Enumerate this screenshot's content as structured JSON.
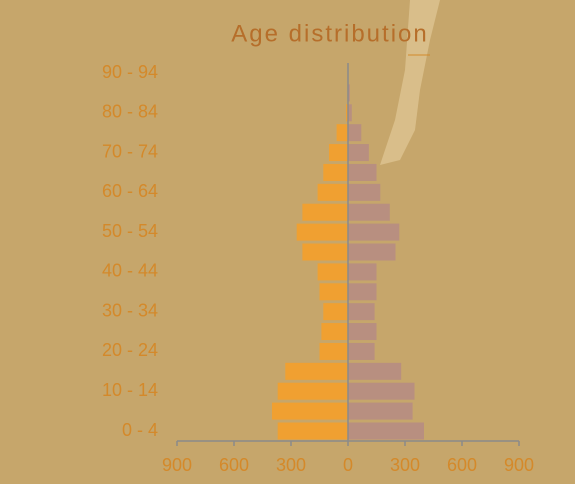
{
  "chart_data": {
    "type": "pyramid",
    "title": "Age distribution",
    "categories": [
      "0 - 4",
      null,
      "10 - 14",
      null,
      "20 - 24",
      null,
      "30 - 34",
      null,
      "40 - 44",
      null,
      "50 - 54",
      null,
      "60 - 64",
      null,
      "70 - 74",
      null,
      "80 - 84",
      null,
      "90 - 94"
    ],
    "series": [
      {
        "color": "#f0a031",
        "values": [
          -370,
          -400,
          -370,
          -330,
          -150,
          -140,
          -130,
          -150,
          -160,
          -240,
          -270,
          -240,
          -160,
          -130,
          -100,
          -60,
          -10,
          0,
          0
        ]
      },
      {
        "color": "#b88f80",
        "values": [
          400,
          340,
          350,
          280,
          140,
          150,
          140,
          150,
          150,
          250,
          270,
          220,
          170,
          150,
          110,
          70,
          20,
          10,
          0
        ]
      }
    ],
    "xlim": [
      -900,
      900
    ],
    "xticks": [
      {
        "value": -900,
        "label": "900"
      },
      {
        "value": -600,
        "label": "600"
      },
      {
        "value": -300,
        "label": "300"
      },
      0,
      300,
      600,
      900
    ]
  }
}
